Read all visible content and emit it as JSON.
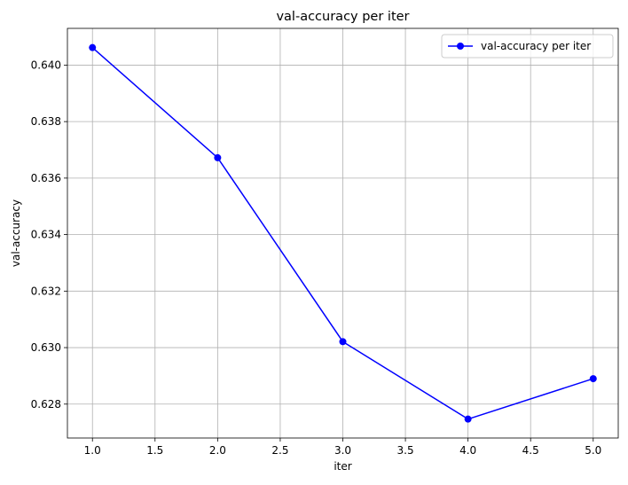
{
  "chart_data": {
    "type": "line",
    "title": "val-accuracy per iter",
    "xlabel": "iter",
    "ylabel": "val-accuracy",
    "xlim": [
      0.8,
      5.2
    ],
    "ylim": [
      0.6268,
      0.6413
    ],
    "x_ticks": [
      1.0,
      1.5,
      2.0,
      2.5,
      3.0,
      3.5,
      4.0,
      4.5,
      5.0
    ],
    "x_tick_labels": [
      "1.0",
      "1.5",
      "2.0",
      "2.5",
      "3.0",
      "3.5",
      "4.0",
      "4.5",
      "5.0"
    ],
    "y_ticks": [
      0.628,
      0.63,
      0.632,
      0.634,
      0.636,
      0.638,
      0.64
    ],
    "y_tick_labels": [
      "0.628",
      "0.630",
      "0.632",
      "0.634",
      "0.636",
      "0.638",
      "0.640"
    ],
    "grid": true,
    "legend_position": "top-right",
    "series": [
      {
        "name": "val-accuracy per iter",
        "color": "#0000ff",
        "marker": "circle",
        "x": [
          1,
          2,
          3,
          4,
          5
        ],
        "y": [
          0.64062,
          0.63672,
          0.63021,
          0.62747,
          0.6289
        ]
      }
    ]
  }
}
